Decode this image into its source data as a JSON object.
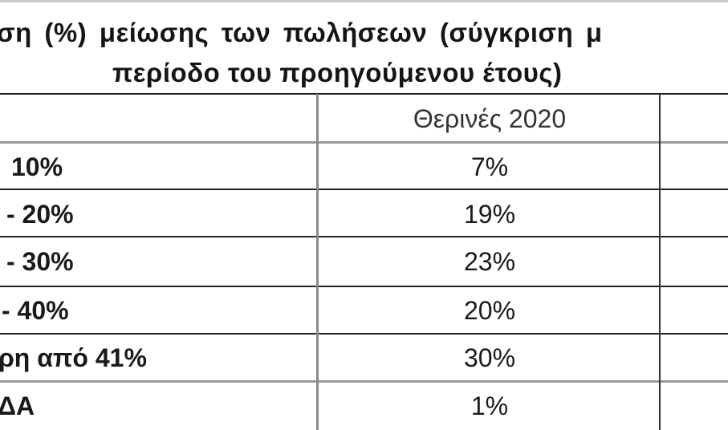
{
  "title": {
    "line1": "ση (%) μείωσης των πωλήσεων (σύγκριση μ",
    "line2": "περίοδο του προηγούμενου έτους)"
  },
  "table": {
    "column_header": "Θερινές 2020",
    "rows": [
      {
        "label": "10%",
        "value": "7%"
      },
      {
        "label": "- 20%",
        "value": "19%"
      },
      {
        "label": "- 30%",
        "value": "23%"
      },
      {
        "label": "- 40%",
        "value": "20%"
      },
      {
        "label": "ρη από 41%",
        "value": "30%"
      },
      {
        "label": "ΔΑ",
        "value": "1%"
      }
    ]
  }
}
